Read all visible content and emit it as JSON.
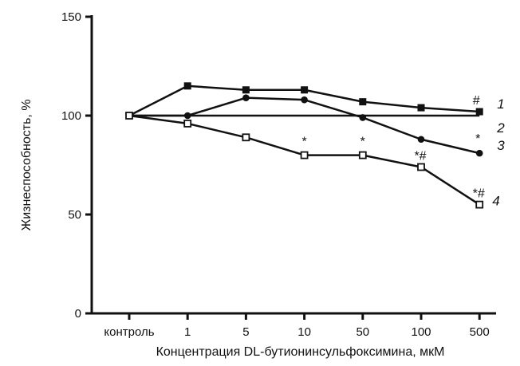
{
  "chart_data": {
    "type": "line",
    "xlabel": "Концентрация DL-бутионинсульфоксимина,  мкМ",
    "ylabel": "Жизнеспособность, %",
    "categories": [
      "контроль",
      "1",
      "5",
      "10",
      "50",
      "100",
      "500"
    ],
    "ylim": [
      0,
      150
    ],
    "yticks": [
      0,
      50,
      100,
      150
    ],
    "grid": false,
    "series": [
      {
        "name": "1",
        "marker": "filled-square",
        "values": [
          100,
          115,
          113,
          113,
          107,
          104,
          102
        ],
        "annotations": [
          null,
          null,
          null,
          null,
          null,
          null,
          "#"
        ]
      },
      {
        "name": "2",
        "marker": "none",
        "values": [
          100,
          100,
          100,
          100,
          100,
          100,
          100
        ],
        "annotations": [
          null,
          null,
          null,
          null,
          null,
          null,
          null
        ]
      },
      {
        "name": "3",
        "marker": "filled-circle",
        "values": [
          100,
          100,
          109,
          108,
          99,
          88,
          81
        ],
        "annotations": [
          null,
          null,
          null,
          null,
          null,
          null,
          "*"
        ]
      },
      {
        "name": "4",
        "marker": "open-square",
        "values": [
          100,
          96,
          89,
          80,
          80,
          74,
          55
        ],
        "annotations": [
          null,
          null,
          null,
          "*",
          "*",
          "*#",
          "*#"
        ]
      }
    ]
  },
  "colors": {
    "ink": "#111111"
  }
}
